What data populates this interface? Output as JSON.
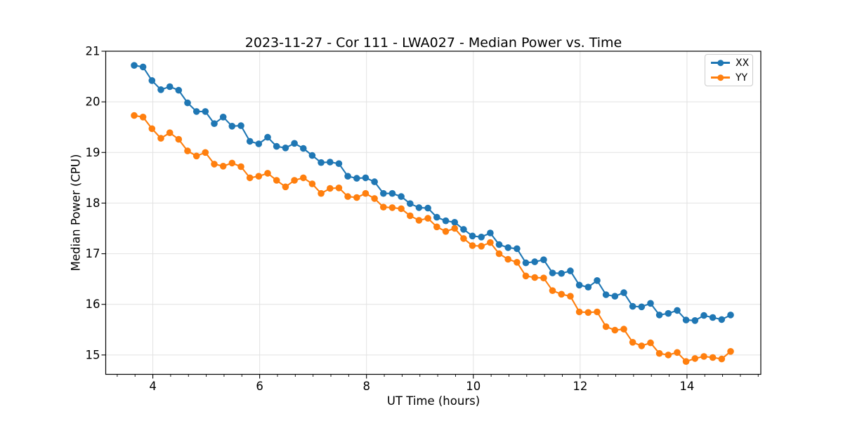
{
  "chart_data": {
    "type": "line",
    "title": "2023-11-27 - Cor 111 - LWA027 - Median Power vs. Time",
    "xlabel": "UT Time (hours)",
    "ylabel": "Median Power (CPU)",
    "xlim": [
      3.118,
      15.382
    ],
    "ylim": [
      14.617,
      21.0
    ],
    "x_major_ticks": [
      4,
      6,
      8,
      10,
      12,
      14
    ],
    "x_minor_tick_step": 0.33333,
    "y_major_ticks": [
      15,
      16,
      17,
      18,
      19,
      20,
      21
    ],
    "grid": "major-both",
    "grid_color": "#e2e2e2",
    "legend_position": "upper right",
    "x": [
      3.65,
      3.817,
      3.983,
      4.15,
      4.317,
      4.483,
      4.65,
      4.817,
      4.983,
      5.15,
      5.317,
      5.483,
      5.65,
      5.817,
      5.983,
      6.15,
      6.317,
      6.483,
      6.65,
      6.817,
      6.983,
      7.15,
      7.317,
      7.483,
      7.65,
      7.817,
      7.983,
      8.15,
      8.317,
      8.483,
      8.65,
      8.817,
      8.983,
      9.15,
      9.317,
      9.483,
      9.65,
      9.817,
      9.983,
      10.15,
      10.317,
      10.483,
      10.65,
      10.817,
      10.983,
      11.15,
      11.317,
      11.483,
      11.65,
      11.817,
      11.983,
      12.15,
      12.317,
      12.483,
      12.65,
      12.817,
      12.983,
      13.15,
      13.317,
      13.483,
      13.65,
      13.817,
      13.983,
      14.15,
      14.317,
      14.483,
      14.65,
      14.817
    ],
    "series": [
      {
        "name": "XX",
        "color": "#1f77b4",
        "values": [
          20.72,
          20.69,
          20.42,
          20.24,
          20.3,
          20.23,
          19.98,
          19.81,
          19.81,
          19.57,
          19.7,
          19.52,
          19.53,
          19.22,
          19.17,
          19.3,
          19.12,
          19.09,
          19.18,
          19.08,
          18.94,
          18.8,
          18.81,
          18.78,
          18.53,
          18.49,
          18.5,
          18.42,
          18.19,
          18.19,
          18.13,
          17.99,
          17.91,
          17.9,
          17.72,
          17.65,
          17.62,
          17.48,
          17.35,
          17.33,
          17.41,
          17.18,
          17.12,
          17.1,
          16.82,
          16.84,
          16.88,
          16.62,
          16.61,
          16.66,
          16.38,
          16.34,
          16.47,
          16.19,
          16.16,
          16.23,
          15.96,
          15.95,
          16.02,
          15.79,
          15.82,
          15.88,
          15.69,
          15.68,
          15.78,
          15.74,
          15.7,
          15.79
        ]
      },
      {
        "name": "YY",
        "color": "#ff7f0e",
        "values": [
          19.73,
          19.7,
          19.47,
          19.28,
          19.39,
          19.26,
          19.03,
          18.93,
          19.0,
          18.77,
          18.73,
          18.79,
          18.72,
          18.5,
          18.53,
          18.59,
          18.45,
          18.32,
          18.45,
          18.5,
          18.38,
          18.19,
          18.29,
          18.3,
          18.13,
          18.11,
          18.19,
          18.09,
          17.92,
          17.91,
          17.89,
          17.75,
          17.66,
          17.7,
          17.53,
          17.44,
          17.5,
          17.3,
          17.16,
          17.15,
          17.22,
          17.0,
          16.89,
          16.83,
          16.56,
          16.53,
          16.52,
          16.27,
          16.2,
          16.16,
          15.85,
          15.84,
          15.85,
          15.56,
          15.49,
          15.51,
          15.25,
          15.18,
          15.24,
          15.03,
          15.0,
          15.05,
          14.87,
          14.93,
          14.97,
          14.95,
          14.92,
          15.07
        ]
      }
    ]
  }
}
